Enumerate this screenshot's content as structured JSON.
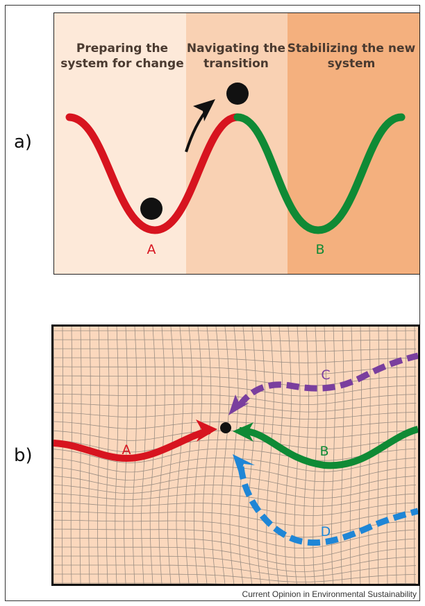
{
  "panel_a": {
    "label": "a)",
    "stages": [
      {
        "line1": "Preparing the",
        "line2": "system for change",
        "color": "#fde9d9"
      },
      {
        "line1": "Navigating the",
        "line2": "transition",
        "color": "#f9d1b3"
      },
      {
        "line1": "Stabilizing the new",
        "line2": "system",
        "color": "#f4b07e"
      }
    ],
    "state_a": "A",
    "state_b": "B"
  },
  "panel_b": {
    "label": "b)",
    "paths": [
      {
        "id": "A",
        "label": "A",
        "color": "#d7141f"
      },
      {
        "id": "B",
        "label": "B",
        "color": "#0f8a35"
      },
      {
        "id": "C",
        "label": "C",
        "color": "#7a3f9e"
      },
      {
        "id": "D",
        "label": "D",
        "color": "#1f86d6"
      }
    ]
  },
  "credit": "Current Opinion in Environmental Sustainability",
  "colors": {
    "red": "#d7141f",
    "green": "#0f8a35",
    "purple": "#7a3f9e",
    "blue": "#1f86d6",
    "grid_bg": "#fbd8bd"
  }
}
